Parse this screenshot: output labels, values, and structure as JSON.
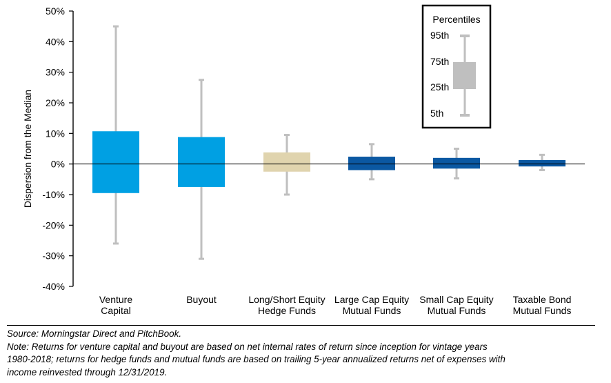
{
  "chart_data": {
    "type": "box",
    "ylabel": "Dispersion from the Median",
    "ylim": [
      -40,
      50
    ],
    "yticks": [
      -40,
      -30,
      -20,
      -10,
      0,
      10,
      20,
      30,
      40,
      50
    ],
    "ytick_labels": [
      "-40%",
      "-30%",
      "-20%",
      "-10%",
      "0%",
      "10%",
      "20%",
      "30%",
      "40%",
      "50%"
    ],
    "y_unit": "percent",
    "zero_line": true,
    "categories": [
      [
        "Venture",
        "Capital"
      ],
      [
        "Buyout"
      ],
      [
        "Long/Short Equity",
        "Hedge Funds"
      ],
      [
        "Large Cap Equity",
        "Mutual Funds"
      ],
      [
        "Small Cap Equity",
        "Mutual Funds"
      ],
      [
        "Taxable Bond",
        "Mutual Funds"
      ]
    ],
    "boxes": [
      {
        "p5": -26,
        "p25": -9.5,
        "p75": 10.7,
        "p95": 45,
        "color": "#00A0E3"
      },
      {
        "p5": -31,
        "p25": -7.5,
        "p75": 8.8,
        "p95": 27.5,
        "color": "#00A0E3"
      },
      {
        "p5": -10,
        "p25": -2.5,
        "p75": 3.8,
        "p95": 9.5,
        "color": "#E0D4AE"
      },
      {
        "p5": -5,
        "p25": -2,
        "p75": 2.4,
        "p95": 6.5,
        "color": "#0B58A2"
      },
      {
        "p5": -4.7,
        "p25": -1.5,
        "p75": 2,
        "p95": 5,
        "color": "#0B58A2"
      },
      {
        "p5": -2,
        "p25": -0.8,
        "p75": 1.3,
        "p95": 3,
        "color": "#0B58A2"
      }
    ],
    "whisker_color": "#BFBFBF",
    "legend": {
      "title": "Percentiles",
      "labels": [
        "95th",
        "75th",
        "25th",
        "5th"
      ],
      "position": "top-right",
      "color": "#BFBFBF"
    }
  },
  "footer": {
    "source": "Source: Morningstar Direct and PitchBook.",
    "note_line1": "Note: Returns for venture capital and buyout are based on net internal rates of return since inception for vintage years",
    "note_line2": "1980-2018; returns for hedge funds and mutual funds are based on trailing 5-year annualized returns net of expenses with",
    "note_line3": "income reinvested through 12/31/2019."
  }
}
